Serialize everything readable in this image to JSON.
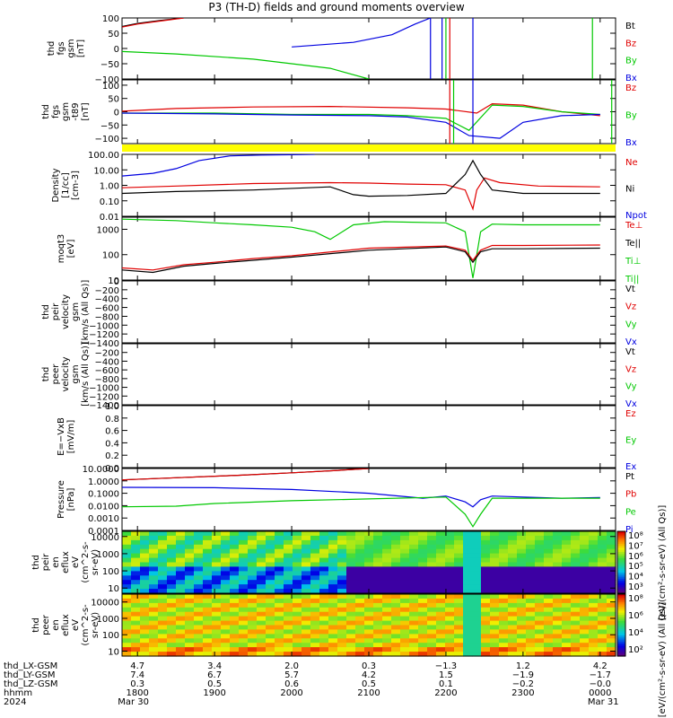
{
  "title": "P3 (TH-D) fields and ground moments overview",
  "colors": {
    "black": "#000000",
    "red": "#e00000",
    "green": "#00c800",
    "blue": "#0000e0",
    "yellow": "#ffff00"
  },
  "chart_data": {
    "type": "line",
    "time_range": [
      "2024-03-30 17:48",
      "2024-03-31 00:12"
    ],
    "x_ticks": [
      "1800",
      "1900",
      "2000",
      "2100",
      "2200",
      "2300",
      "0000"
    ],
    "panels": [
      {
        "id": "fgs-gsm",
        "ylabel": [
          "thd",
          "fgs",
          "gsm",
          "[nT]"
        ],
        "yscale": "linear",
        "ylim": [
          -100,
          100
        ],
        "yticks": [
          "100",
          "50",
          "0",
          "−50",
          "−100"
        ],
        "legend": [
          {
            "name": "Bt",
            "color": "black"
          },
          {
            "name": "Bz",
            "color": "red"
          },
          {
            "name": "By",
            "color": "green"
          },
          {
            "name": "Bx",
            "color": "blue"
          }
        ]
      },
      {
        "id": "fgs-gsm-bgsub",
        "ylabel": [
          "thd",
          "fgs",
          "gsm",
          "-t89",
          "[nT]"
        ],
        "yscale": "linear",
        "ylim": [
          -120,
          120
        ],
        "yticks": [
          "100",
          "50",
          "0",
          "−50",
          "−100"
        ],
        "legend": [
          {
            "name": "Bz",
            "color": "red"
          },
          {
            "name": "By",
            "color": "green"
          },
          {
            "name": "Bx",
            "color": "blue"
          }
        ]
      },
      {
        "id": "density",
        "ylabel": [
          "Density",
          "[1/cc]",
          "[cm-3]"
        ],
        "yscale": "log",
        "ylim": [
          0.01,
          100
        ],
        "yticks": [
          "100.00",
          "10.00",
          "1.00",
          "0.10",
          "0.01"
        ],
        "legend": [
          {
            "name": "Ne",
            "color": "red"
          },
          {
            "name": "Ni",
            "color": "black"
          },
          {
            "name": "Npot",
            "color": "blue"
          }
        ]
      },
      {
        "id": "temperature",
        "ylabel": [
          "moqt3",
          "[eV]"
        ],
        "yscale": "log",
        "ylim": [
          10,
          3000
        ],
        "yticks": [
          "1000",
          "100",
          "10"
        ],
        "legend": [
          {
            "name": "Te⊥",
            "color": "red"
          },
          {
            "name": "Te||",
            "color": "black"
          },
          {
            "name": "Ti⊥",
            "color": "green"
          },
          {
            "name": "Ti||",
            "color": "green"
          }
        ]
      },
      {
        "id": "peir-velocity",
        "ylabel": [
          "thd",
          "peir",
          "velocity",
          "gsm",
          "[km/s (All Qs)]"
        ],
        "yscale": "linear",
        "ylim": [
          -1400,
          0
        ],
        "yticks": [
          "0",
          "−200",
          "−400",
          "−600",
          "−800",
          "−1000",
          "−1200",
          "−1400"
        ],
        "legend": [
          {
            "name": "Vt",
            "color": "black"
          },
          {
            "name": "Vz",
            "color": "red"
          },
          {
            "name": "Vy",
            "color": "green"
          },
          {
            "name": "Vx",
            "color": "blue"
          }
        ]
      },
      {
        "id": "peer-velocity",
        "ylabel": [
          "thd",
          "peer",
          "velocity",
          "gsm",
          "[km/s (All Qs)]"
        ],
        "yscale": "linear",
        "ylim": [
          -1400,
          0
        ],
        "yticks": [
          "−200",
          "−400",
          "−600",
          "−800",
          "−1000",
          "−1200",
          "−1400"
        ],
        "legend": [
          {
            "name": "Vt",
            "color": "black"
          },
          {
            "name": "Vz",
            "color": "red"
          },
          {
            "name": "Vy",
            "color": "green"
          },
          {
            "name": "Vx",
            "color": "blue"
          }
        ]
      },
      {
        "id": "efield",
        "ylabel": [
          "E=−VxB",
          "[mV/m]"
        ],
        "yscale": "linear",
        "ylim": [
          0,
          1
        ],
        "yticks": [
          "1.0",
          "0.8",
          "0.6",
          "0.4",
          "0.2",
          "0.0"
        ],
        "legend": [
          {
            "name": "Ez",
            "color": "red"
          },
          {
            "name": "Ey",
            "color": "green"
          },
          {
            "name": "Ex",
            "color": "blue"
          }
        ]
      },
      {
        "id": "pressure",
        "ylabel": [
          "Pressure",
          "[nPa]"
        ],
        "yscale": "log",
        "ylim": [
          0.0001,
          10
        ],
        "yticks": [
          "10.0000",
          "1.0000",
          "0.1000",
          "0.0100",
          "0.0010",
          "0.0001"
        ],
        "legend": [
          {
            "name": "Pt",
            "color": "black"
          },
          {
            "name": "Pb",
            "color": "red"
          },
          {
            "name": "Pe",
            "color": "green"
          },
          {
            "name": "Pi",
            "color": "blue"
          }
        ]
      },
      {
        "id": "peir-eflux",
        "type": "heatmap",
        "ylabel": [
          "thd",
          "peir",
          "en",
          "eflux",
          "eV",
          "(cm^2-s-",
          "sr-eV)"
        ],
        "yscale": "log",
        "ylim": [
          5,
          20000
        ],
        "yticks": [
          "10000",
          "1000",
          "100",
          "10"
        ],
        "colorbar_ticks": [
          "10⁸",
          "10⁷",
          "10⁶",
          "10⁵",
          "10⁴",
          "10³"
        ],
        "colorbar_label": "[eV/(cm²-s-sr-eV) (All Qs)]"
      },
      {
        "id": "peer-eflux",
        "type": "heatmap",
        "ylabel": [
          "thd",
          "peer",
          "en",
          "eflux",
          "eV",
          "(cm^2-s-",
          "sr-eV)"
        ],
        "yscale": "log",
        "ylim": [
          5,
          30000
        ],
        "yticks": [
          "10000",
          "1000",
          "100",
          "10"
        ],
        "colorbar_ticks": [
          "10⁸",
          "10⁶",
          "10⁴",
          "10²"
        ],
        "colorbar_label": "[eV/(cm²-s-sr-eV) (All Qs)]"
      }
    ],
    "series": [
      {
        "panel": 0,
        "name": "Bt",
        "color": "black",
        "x": [
          17.8,
          18.0,
          18.3,
          18.6
        ],
        "y": [
          72,
          82,
          92,
          100
        ]
      },
      {
        "panel": 0,
        "name": "Bz",
        "color": "red",
        "x": [
          17.8,
          18.0,
          18.3,
          18.6
        ],
        "y": [
          70,
          80,
          90,
          100
        ]
      },
      {
        "panel": 0,
        "name": "By",
        "color": "green",
        "x": [
          17.8,
          18.5,
          19.5,
          20.5,
          21.0
        ],
        "y": [
          -10,
          -18,
          -35,
          -65,
          -100
        ]
      },
      {
        "panel": 0,
        "name": "Bx",
        "color": "blue",
        "x": [
          20.0,
          20.8,
          21.3,
          21.6,
          21.8
        ],
        "y": [
          5,
          20,
          45,
          80,
          100
        ]
      },
      {
        "panel": 1,
        "name": "Bz",
        "color": "red",
        "x": [
          17.8,
          18.5,
          19.5,
          20.5,
          21.5,
          22.0,
          22.4,
          22.6,
          23.0,
          23.5,
          24.0
        ],
        "y": [
          2,
          12,
          18,
          20,
          15,
          10,
          -5,
          30,
          25,
          0,
          -15
        ]
      },
      {
        "panel": 1,
        "name": "By",
        "color": "green",
        "x": [
          17.8,
          19.0,
          20.0,
          21.0,
          21.5,
          22.0,
          22.3,
          22.6,
          23.0,
          23.5,
          24.0
        ],
        "y": [
          -5,
          -5,
          -10,
          -10,
          -15,
          -25,
          -70,
          25,
          20,
          0,
          -10
        ]
      },
      {
        "panel": 1,
        "name": "Bx",
        "color": "blue",
        "x": [
          17.8,
          19.0,
          20.0,
          21.0,
          21.5,
          22.0,
          22.3,
          22.7,
          23.0,
          23.5,
          24.0
        ],
        "y": [
          -5,
          -8,
          -12,
          -15,
          -20,
          -40,
          -90,
          -100,
          -40,
          -15,
          -10
        ]
      },
      {
        "panel": 2,
        "name": "Npot",
        "color": "blue",
        "x": [
          17.8,
          18.2,
          18.5,
          18.8,
          19.2,
          19.6,
          20.0,
          20.3
        ],
        "y": [
          4,
          6,
          12,
          40,
          80,
          90,
          95,
          100
        ]
      },
      {
        "panel": 2,
        "name": "Ne",
        "color": "red",
        "x": [
          17.8,
          18.5,
          19.5,
          20.5,
          21.0,
          21.5,
          22.0,
          22.25,
          22.35,
          22.4,
          22.5,
          22.7,
          23.2,
          24.0
        ],
        "y": [
          0.7,
          0.9,
          1.3,
          1.5,
          1.4,
          1.2,
          1.1,
          0.5,
          0.03,
          0.5,
          3,
          1.5,
          0.9,
          0.8
        ]
      },
      {
        "panel": 2,
        "name": "Ni",
        "color": "black",
        "x": [
          17.8,
          18.5,
          19.5,
          20.5,
          20.8,
          21.0,
          21.5,
          22.0,
          22.25,
          22.35,
          22.45,
          22.6,
          23.0,
          24.0
        ],
        "y": [
          0.3,
          0.4,
          0.5,
          0.8,
          0.25,
          0.2,
          0.22,
          0.3,
          5,
          40,
          5,
          0.5,
          0.3,
          0.3
        ]
      },
      {
        "panel": 3,
        "name": "Ti||",
        "color": "green",
        "x": [
          17.8,
          18.5,
          19.0,
          19.5,
          20.0,
          20.3,
          20.5,
          20.8,
          21.2,
          22.0,
          22.25,
          22.35,
          22.45,
          22.6,
          23.0,
          24.0
        ],
        "y": [
          2500,
          2200,
          1800,
          1500,
          1200,
          800,
          400,
          1500,
          2000,
          1800,
          800,
          12,
          800,
          1600,
          1500,
          1500
        ]
      },
      {
        "panel": 3,
        "name": "Te⊥",
        "color": "red",
        "x": [
          17.8,
          18.2,
          18.6,
          19.0,
          19.5,
          20.0,
          21.0,
          22.0,
          22.25,
          22.35,
          22.45,
          22.6,
          23.0,
          24.0
        ],
        "y": [
          30,
          25,
          40,
          50,
          70,
          90,
          180,
          220,
          150,
          60,
          150,
          230,
          230,
          240
        ]
      },
      {
        "panel": 3,
        "name": "Te||",
        "color": "black",
        "x": [
          17.8,
          18.2,
          18.6,
          19.0,
          19.5,
          20.0,
          21.0,
          22.0,
          22.25,
          22.35,
          22.45,
          22.6,
          23.0,
          24.0
        ],
        "y": [
          25,
          20,
          35,
          45,
          60,
          80,
          150,
          200,
          130,
          50,
          130,
          170,
          170,
          180
        ]
      },
      {
        "panel": 7,
        "name": "Pt",
        "color": "black",
        "x": [
          17.8,
          18.5,
          19.3,
          20.0,
          20.6,
          21.0
        ],
        "y": [
          1.2,
          1.8,
          2.8,
          4.5,
          7,
          10
        ]
      },
      {
        "panel": 7,
        "name": "Pb",
        "color": "red",
        "x": [
          17.8,
          18.5,
          19.3,
          20.0,
          20.6,
          21.0
        ],
        "y": [
          1.2,
          1.8,
          2.8,
          4.5,
          7,
          10
        ]
      },
      {
        "panel": 7,
        "name": "Pi",
        "color": "blue",
        "x": [
          17.8,
          19.0,
          20.0,
          21.0,
          21.7,
          22.0,
          22.25,
          22.35,
          22.45,
          22.6,
          23.0,
          23.5,
          24.0
        ],
        "y": [
          0.3,
          0.28,
          0.2,
          0.1,
          0.04,
          0.06,
          0.02,
          0.008,
          0.03,
          0.06,
          0.05,
          0.04,
          0.045
        ]
      },
      {
        "panel": 7,
        "name": "Pe",
        "color": "green",
        "x": [
          17.8,
          18.5,
          19.0,
          20.0,
          21.0,
          22.0,
          22.25,
          22.35,
          22.45,
          22.6,
          23.0,
          24.0
        ],
        "y": [
          0.008,
          0.009,
          0.015,
          0.025,
          0.035,
          0.05,
          0.002,
          0.0002,
          0.002,
          0.04,
          0.04,
          0.04
        ]
      }
    ],
    "ephemeris": {
      "labels": [
        "thd_LX-GSM",
        "thd_LY-GSM",
        "thd_LZ-GSM",
        "hhmm",
        "2024"
      ],
      "LX": [
        "4.7",
        "3.4",
        "2.0",
        "0.3",
        "−1.3",
        "1.2",
        "4.2"
      ],
      "LY": [
        "7.4",
        "6.7",
        "5.7",
        "4.2",
        "1.5",
        "−1.9",
        "−1.7"
      ],
      "LZ": [
        "0.3",
        "0.5",
        "0.6",
        "0.5",
        "0.1",
        "−0.2",
        "−0.0"
      ],
      "hhmm": [
        "1800",
        "1900",
        "2000",
        "2100",
        "2200",
        "2300",
        "0000"
      ],
      "date": [
        "Mar 30",
        "Mar 31"
      ]
    }
  }
}
